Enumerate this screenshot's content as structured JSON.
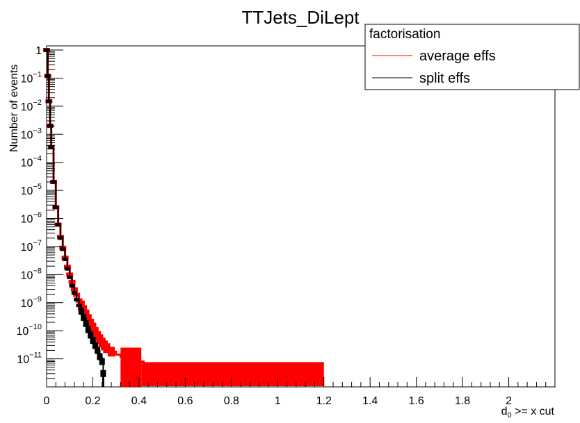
{
  "chart_data": {
    "type": "line",
    "title": "TTJets_DiLept",
    "xlabel_main": "d",
    "xlabel_sub": "0",
    "xlabel_rest": " >= x cut",
    "ylabel": "Number of events",
    "xlim": [
      0,
      2.2
    ],
    "ylim_log10": [
      -12,
      0.15
    ],
    "yscale": "log",
    "grid": false,
    "x_ticks": [
      {
        "value": 0,
        "label": "0"
      },
      {
        "value": 0.2,
        "label": "0.2"
      },
      {
        "value": 0.4,
        "label": "0.4"
      },
      {
        "value": 0.6,
        "label": "0.6"
      },
      {
        "value": 0.8,
        "label": "0.8"
      },
      {
        "value": 1.0,
        "label": "1"
      },
      {
        "value": 1.2,
        "label": "1.2"
      },
      {
        "value": 1.4,
        "label": "1.4"
      },
      {
        "value": 1.6,
        "label": "1.6"
      },
      {
        "value": 1.8,
        "label": "1.8"
      },
      {
        "value": 2.0,
        "label": "2"
      }
    ],
    "y_ticks": [
      {
        "exp": 0,
        "base": "1",
        "sup": ""
      },
      {
        "exp": -1,
        "base": "10",
        "sup": "−1"
      },
      {
        "exp": -2,
        "base": "10",
        "sup": "−2"
      },
      {
        "exp": -3,
        "base": "10",
        "sup": "−3"
      },
      {
        "exp": -4,
        "base": "10",
        "sup": "−4"
      },
      {
        "exp": -5,
        "base": "10",
        "sup": "−5"
      },
      {
        "exp": -6,
        "base": "10",
        "sup": "−6"
      },
      {
        "exp": -7,
        "base": "10",
        "sup": "−7"
      },
      {
        "exp": -8,
        "base": "10",
        "sup": "−8"
      },
      {
        "exp": -9,
        "base": "10",
        "sup": "−9"
      },
      {
        "exp": -10,
        "base": "10",
        "sup": "−10"
      },
      {
        "exp": -11,
        "base": "10",
        "sup": "−11"
      }
    ],
    "legend": {
      "title": "factorisation",
      "placement": "top-right",
      "entries": [
        {
          "label": "average effs",
          "color": "#ff0000"
        },
        {
          "label": "split effs",
          "color": "#000000"
        }
      ]
    },
    "series": [
      {
        "name": "split effs",
        "color": "#000000",
        "points": [
          [
            0.0,
            1.0
          ],
          [
            0.005,
            0.12
          ],
          [
            0.01,
            0.015
          ],
          [
            0.015,
            0.002
          ],
          [
            0.02,
            0.00035
          ],
          [
            0.03,
            2e-05
          ],
          [
            0.04,
            2.5e-06
          ],
          [
            0.05,
            6e-07
          ],
          [
            0.06,
            2e-07
          ],
          [
            0.07,
            8e-08
          ],
          [
            0.08,
            3.5e-08
          ],
          [
            0.09,
            1.6e-08
          ],
          [
            0.1,
            8e-09
          ],
          [
            0.11,
            4e-09
          ],
          [
            0.12,
            2.2e-09
          ],
          [
            0.13,
            1.3e-09
          ],
          [
            0.14,
            8e-10
          ],
          [
            0.15,
            5e-10
          ],
          [
            0.16,
            3e-10
          ],
          [
            0.17,
            1.8e-10
          ],
          [
            0.18,
            1.1e-10
          ],
          [
            0.19,
            7e-11
          ],
          [
            0.2,
            4.5e-11
          ],
          [
            0.21,
            3e-11
          ],
          [
            0.22,
            2e-11
          ],
          [
            0.23,
            1.2e-11
          ],
          [
            0.24,
            8e-12
          ],
          [
            0.245,
            3e-12
          ]
        ]
      },
      {
        "name": "average effs",
        "color": "#ff0000",
        "points": [
          [
            0.0,
            1.0
          ],
          [
            0.005,
            0.12
          ],
          [
            0.01,
            0.015
          ],
          [
            0.015,
            0.002
          ],
          [
            0.02,
            0.00035
          ],
          [
            0.03,
            2e-05
          ],
          [
            0.04,
            2.5e-06
          ],
          [
            0.05,
            6e-07
          ],
          [
            0.06,
            2.2e-07
          ],
          [
            0.07,
            9e-08
          ],
          [
            0.08,
            4e-08
          ],
          [
            0.09,
            1.9e-08
          ],
          [
            0.1,
            1e-08
          ],
          [
            0.11,
            5.5e-09
          ],
          [
            0.12,
            3e-09
          ],
          [
            0.13,
            1.9e-09
          ],
          [
            0.14,
            1.2e-09
          ],
          [
            0.15,
            8e-10
          ],
          [
            0.16,
            5.5e-10
          ],
          [
            0.17,
            3.8e-10
          ],
          [
            0.18,
            2.6e-10
          ],
          [
            0.19,
            1.8e-10
          ],
          [
            0.2,
            1.3e-10
          ],
          [
            0.21,
            9e-11
          ],
          [
            0.22,
            6.5e-11
          ],
          [
            0.23,
            5e-11
          ],
          [
            0.24,
            3.8e-11
          ],
          [
            0.25,
            3e-11
          ],
          [
            0.26,
            2.4e-11
          ],
          [
            0.28,
            1.8e-11
          ],
          [
            0.3,
            1.4e-11
          ],
          [
            0.32,
            1.2e-11
          ],
          [
            0.34,
            1e-11
          ],
          [
            0.38,
            8e-12
          ],
          [
            0.42,
            7e-12
          ],
          [
            0.6,
            7e-12
          ],
          [
            0.8,
            7e-12
          ],
          [
            1.0,
            7e-12
          ],
          [
            1.2,
            7e-12
          ]
        ]
      }
    ]
  }
}
